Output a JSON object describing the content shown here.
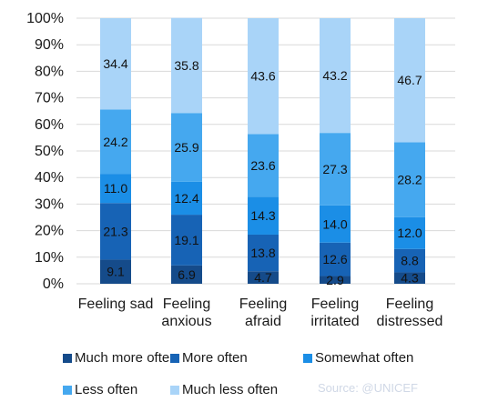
{
  "chart_data": {
    "type": "bar",
    "stacked": true,
    "categories": [
      [
        "Feeling sad"
      ],
      [
        "Feeling",
        "anxious"
      ],
      [
        "Feeling",
        "afraid"
      ],
      [
        "Feeling",
        "irritated"
      ],
      [
        "Feeling",
        "distressed"
      ]
    ],
    "series": [
      {
        "name": "Much more often",
        "color": "#154b8a",
        "values": [
          9.1,
          6.9,
          4.7,
          2.9,
          4.3
        ],
        "labels": [
          "9.1",
          "6.9",
          "4.7",
          "2.9",
          "4.3"
        ]
      },
      {
        "name": "More often",
        "color": "#1763b5",
        "values": [
          21.3,
          19.1,
          13.8,
          12.6,
          8.8
        ],
        "labels": [
          "21.3",
          "19.1",
          "13.8",
          "12.6",
          "8.8"
        ]
      },
      {
        "name": "Somewhat often",
        "color": "#1b8ee6",
        "values": [
          11.0,
          12.4,
          14.3,
          14.0,
          12.0
        ],
        "labels": [
          "11.0",
          "12.4",
          "14.3",
          "14.0",
          "12.0"
        ]
      },
      {
        "name": "Less often",
        "color": "#45a8ef",
        "values": [
          24.2,
          25.9,
          23.6,
          27.3,
          28.2
        ],
        "labels": [
          "24.2",
          "25.9",
          "23.6",
          "27.3",
          "28.2"
        ]
      },
      {
        "name": "Much less often",
        "color": "#a9d4f8",
        "values": [
          34.4,
          35.8,
          43.6,
          43.2,
          46.7
        ],
        "labels": [
          "34.4",
          "35.8",
          "43.6",
          "43.2",
          "46.7"
        ]
      }
    ],
    "yticks": [
      "0%",
      "10%",
      "20%",
      "30%",
      "40%",
      "50%",
      "60%",
      "70%",
      "80%",
      "90%",
      "100%"
    ],
    "ylim": [
      0,
      100
    ],
    "grid": true,
    "legend_position": "bottom",
    "source": "Source:  @UNICEF"
  }
}
